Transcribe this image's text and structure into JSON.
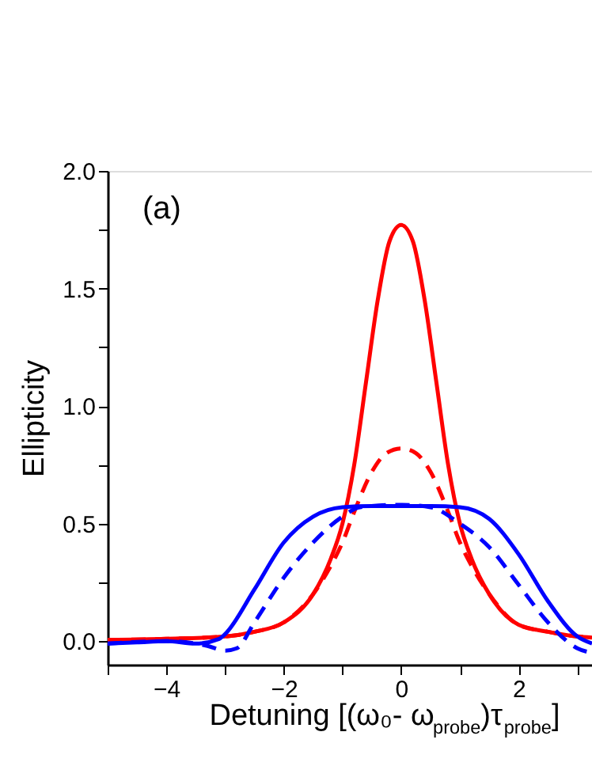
{
  "chart_data": {
    "type": "line",
    "xlabel": "Detuning [(ω₀- ω$_{probe}$)τ$_{probe}$]",
    "ylabel": "Ellipticity",
    "annotations": [
      "(a)"
    ],
    "xlim": [
      -5,
      3.25
    ],
    "ylim": [
      -0.1,
      2.0
    ],
    "xticks": [
      {
        "value": -5,
        "label": null
      },
      -4,
      {
        "value": -3,
        "label": null
      },
      -2,
      {
        "value": -1,
        "label": null
      },
      0,
      {
        "value": 1,
        "label": null
      },
      2,
      {
        "value": 3,
        "label": null
      }
    ],
    "yticks": [
      {
        "value": 0,
        "label": "0.0"
      },
      {
        "value": 0.25,
        "label": null
      },
      {
        "value": 0.5,
        "label": "0.5"
      },
      {
        "value": 0.75,
        "label": null
      },
      {
        "value": 1,
        "label": "1.0"
      },
      {
        "value": 1.25,
        "label": null
      },
      {
        "value": 1.5,
        "label": "1.5"
      },
      {
        "value": 1.75,
        "label": null
      },
      {
        "value": 2,
        "label": "2.0"
      }
    ],
    "grid": false,
    "legend": false,
    "series": [
      {
        "color": "#ff0000",
        "line_style": "solid",
        "x": [
          -5,
          -4,
          -3,
          -2.5,
          -2,
          -1.5,
          -1.2,
          -1,
          -0.8,
          -0.6,
          -0.4,
          -0.2,
          0,
          0.2,
          0.4,
          0.6,
          0.8,
          1,
          1.2,
          1.5,
          2,
          2.5,
          3,
          3.25
        ],
        "values": [
          0.005,
          0.01,
          0.02,
          0.04,
          0.08,
          0.2,
          0.35,
          0.5,
          0.75,
          1.1,
          1.45,
          1.7,
          1.77,
          1.7,
          1.45,
          1.1,
          0.75,
          0.5,
          0.35,
          0.2,
          0.07,
          0.04,
          0.02,
          0.015
        ]
      },
      {
        "color": "#ff0000",
        "line_style": "dashed",
        "x": [
          -5,
          -4,
          -3,
          -2.5,
          -2,
          -1.5,
          -1.2,
          -1,
          -0.8,
          -0.5,
          -0.25,
          0,
          0.25,
          0.5,
          0.8,
          1,
          1.2,
          1.5,
          2,
          2.5,
          3,
          3.25
        ],
        "values": [
          0.005,
          0.01,
          0.02,
          0.04,
          0.08,
          0.2,
          0.32,
          0.42,
          0.55,
          0.72,
          0.8,
          0.82,
          0.8,
          0.72,
          0.55,
          0.42,
          0.32,
          0.2,
          0.07,
          0.04,
          0.02,
          0.015
        ]
      },
      {
        "color": "#0000ff",
        "line_style": "solid",
        "x": [
          -5,
          -4.5,
          -4,
          -3.5,
          -3.1,
          -3,
          -2.5,
          -2,
          -1.5,
          -1,
          -0.5,
          0,
          0.5,
          1,
          1.5,
          2,
          2.5,
          3,
          3.25
        ],
        "values": [
          -0.01,
          -0.005,
          0.0,
          -0.01,
          0.01,
          0.03,
          0.22,
          0.42,
          0.53,
          0.57,
          0.575,
          0.575,
          0.575,
          0.57,
          0.52,
          0.37,
          0.17,
          0.02,
          -0.01
        ]
      },
      {
        "color": "#0000ff",
        "line_style": "dashed",
        "x": [
          -5,
          -4,
          -3.3,
          -3,
          -2.8,
          -2.5,
          -2,
          -1.5,
          -1,
          -0.7,
          0,
          0.5,
          1,
          1.5,
          2,
          2.5,
          3,
          3.25
        ],
        "values": [
          -0.01,
          0.0,
          -0.02,
          -0.04,
          -0.03,
          0.08,
          0.27,
          0.42,
          0.53,
          0.57,
          0.58,
          0.57,
          0.5,
          0.4,
          0.24,
          0.08,
          -0.03,
          -0.05
        ]
      }
    ]
  }
}
